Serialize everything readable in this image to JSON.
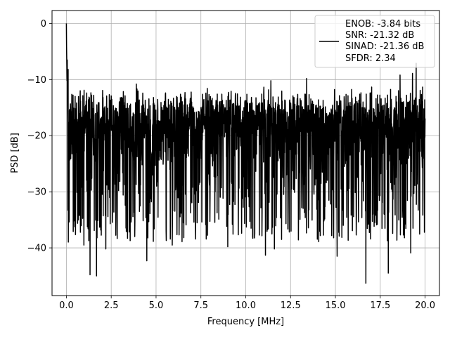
{
  "chart_data": {
    "type": "line",
    "xlabel": "Frequency [MHz]",
    "ylabel": "PSD [dB]",
    "xlim": [
      -0.8,
      20.8
    ],
    "ylim": [
      -48.5,
      2.3
    ],
    "x_ticks": [
      0.0,
      2.5,
      5.0,
      7.5,
      10.0,
      12.5,
      15.0,
      17.5,
      20.0
    ],
    "x_tick_labels": [
      "0.0",
      "2.5",
      "5.0",
      "7.5",
      "10.0",
      "12.5",
      "15.0",
      "17.5",
      "20.0"
    ],
    "y_ticks": [
      0,
      -10,
      -20,
      -30,
      -40
    ],
    "y_tick_labels": [
      "0",
      "−10",
      "−20",
      "−30",
      "−40"
    ],
    "grid": true,
    "legend": {
      "placement": "top-right",
      "entries": [
        "ENOB: -3.84 bits",
        "SNR: -21.32 dB",
        "SINAD: -21.36 dB",
        "SFDR: 2.34"
      ]
    },
    "series": [
      {
        "color": "#000000",
        "x_start": 0.0,
        "x_end": 20.0,
        "num_points": 2048,
        "peak": {
          "x": 0.0,
          "y": 0.0
        },
        "noise_floor_mean": -19.5,
        "envelope_upper": -11,
        "envelope_lower": -33,
        "dips": [
          {
            "x": 1.32,
            "y": -44.8
          },
          {
            "x": 1.68,
            "y": -45.0
          },
          {
            "x": 0.98,
            "y": -39.5
          },
          {
            "x": 2.2,
            "y": -40.2
          },
          {
            "x": 4.48,
            "y": -42.3
          },
          {
            "x": 16.7,
            "y": -46.3
          },
          {
            "x": 17.95,
            "y": -44.5
          },
          {
            "x": 15.1,
            "y": -41.5
          },
          {
            "x": 19.2,
            "y": -40.9
          },
          {
            "x": 11.1,
            "y": -41.3
          },
          {
            "x": 11.6,
            "y": -40.2
          },
          {
            "x": 9.0,
            "y": -39.8
          },
          {
            "x": 5.9,
            "y": -39.5
          },
          {
            "x": 6.55,
            "y": -38.2
          },
          {
            "x": 10.3,
            "y": -36.5
          },
          {
            "x": 12.0,
            "y": -38.5
          }
        ],
        "spikes": [
          {
            "x": 0.05,
            "y": -6.5
          },
          {
            "x": 0.1,
            "y": -8.2
          },
          {
            "x": 19.5,
            "y": -7.1
          },
          {
            "x": 19.3,
            "y": -8.9
          },
          {
            "x": 18.6,
            "y": -9.2
          },
          {
            "x": 13.4,
            "y": -9.8
          },
          {
            "x": 11.4,
            "y": -10.2
          },
          {
            "x": 3.9,
            "y": -10.8
          }
        ]
      }
    ]
  }
}
